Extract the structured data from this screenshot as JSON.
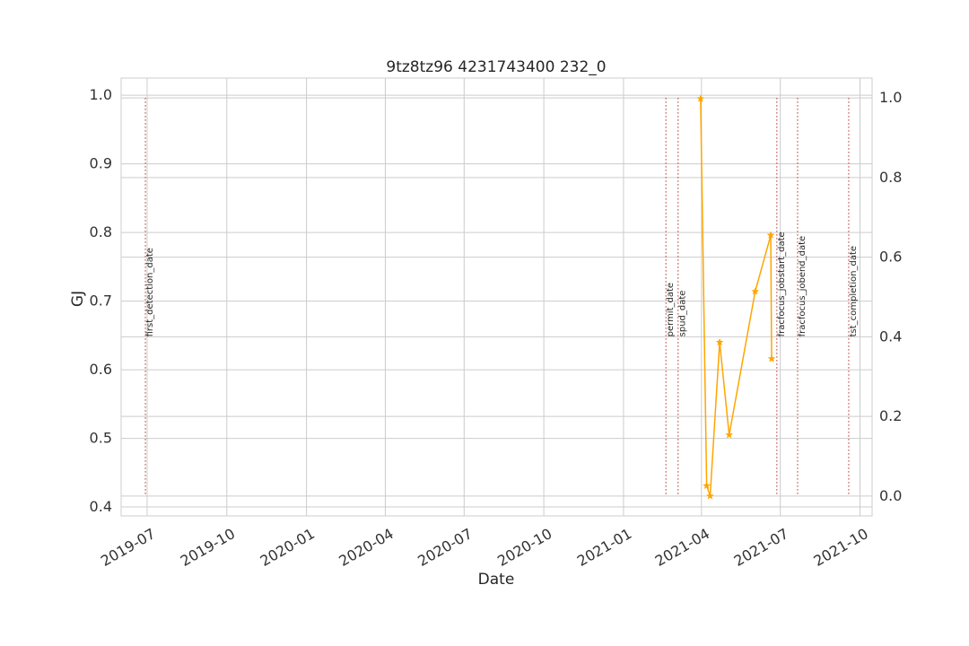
{
  "chart_data": {
    "type": "line",
    "title": "9tz8tz96 4231743400 232_0",
    "xlabel": "Date",
    "ylabel": "GJ",
    "ylabel_color": "#1f77b4",
    "x_range": [
      "2019-06-01",
      "2021-10-15"
    ],
    "ylim": [
      0.387,
      1.025
    ],
    "y2lim": [
      -0.05,
      1.05
    ],
    "yticks": [
      "0.4",
      "0.5",
      "0.6",
      "0.7",
      "0.8",
      "0.9",
      "1.0"
    ],
    "y2ticks": [
      "0.0",
      "0.2",
      "0.4",
      "0.6",
      "0.8",
      "1.0"
    ],
    "xticks": [
      {
        "date": "2019-07-01",
        "label": "2019-07"
      },
      {
        "date": "2019-10-01",
        "label": "2019-10"
      },
      {
        "date": "2020-01-01",
        "label": "2020-01"
      },
      {
        "date": "2020-04-01",
        "label": "2020-04"
      },
      {
        "date": "2020-07-01",
        "label": "2020-07"
      },
      {
        "date": "2020-10-01",
        "label": "2020-10"
      },
      {
        "date": "2021-01-01",
        "label": "2021-01"
      },
      {
        "date": "2021-04-01",
        "label": "2021-04"
      },
      {
        "date": "2021-07-01",
        "label": "2021-07"
      },
      {
        "date": "2021-10-01",
        "label": "2021-10"
      }
    ],
    "grid": true,
    "series": [
      {
        "color": "#ffa500",
        "marker": "star",
        "points": [
          {
            "x": "2021-03-31",
            "y": 0.995
          },
          {
            "x": "2021-04-07",
            "y": 0.431
          },
          {
            "x": "2021-04-11",
            "y": 0.416
          },
          {
            "x": "2021-04-22",
            "y": 0.64
          },
          {
            "x": "2021-05-03",
            "y": 0.505
          },
          {
            "x": "2021-06-02",
            "y": 0.714
          },
          {
            "x": "2021-06-20",
            "y": 0.796
          },
          {
            "x": "2021-06-21",
            "y": 0.616
          }
        ]
      }
    ],
    "events": [
      {
        "label": "first_detection_date",
        "date": "2019-06-29"
      },
      {
        "label": "permit_date",
        "date": "2021-02-19"
      },
      {
        "label": "spud_date",
        "date": "2021-03-05"
      },
      {
        "label": "fracfocus_jobstart_date",
        "date": "2021-06-27"
      },
      {
        "label": "fracfocus_jobend_date",
        "date": "2021-07-21"
      },
      {
        "label": "tst_completion_date",
        "date": "2021-09-18"
      }
    ],
    "event_color": "#c0504d"
  }
}
